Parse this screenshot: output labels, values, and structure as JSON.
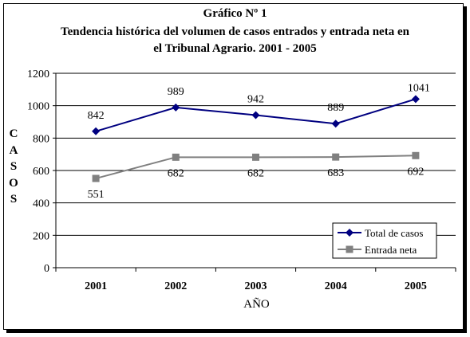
{
  "chart_data": {
    "type": "line",
    "title_line1": "Gráfico Nº 1",
    "title_line2": "Tendencia histórica del volumen de casos entrados y entrada neta en",
    "title_line3": "el Tribunal Agrario. 2001 - 2005",
    "xlabel": "AÑO",
    "ylabel": "CASOS",
    "categories": [
      "2001",
      "2002",
      "2003",
      "2004",
      "2005"
    ],
    "ylim": [
      0,
      1200
    ],
    "yticks": [
      "0",
      "200",
      "400",
      "600",
      "800",
      "1000",
      "1200"
    ],
    "grid": true,
    "legend_position": "bottom-right",
    "series": [
      {
        "name": "Total de casos",
        "values": [
          842,
          989,
          942,
          889,
          1041
        ],
        "labels": [
          "842",
          "989",
          "942",
          "889",
          "1041"
        ],
        "color": "#000080",
        "marker": "diamond"
      },
      {
        "name": "Entrada neta",
        "values": [
          551,
          682,
          682,
          683,
          692
        ],
        "labels": [
          "551",
          "682",
          "682",
          "683",
          "692"
        ],
        "color": "#808080",
        "marker": "square"
      }
    ]
  }
}
